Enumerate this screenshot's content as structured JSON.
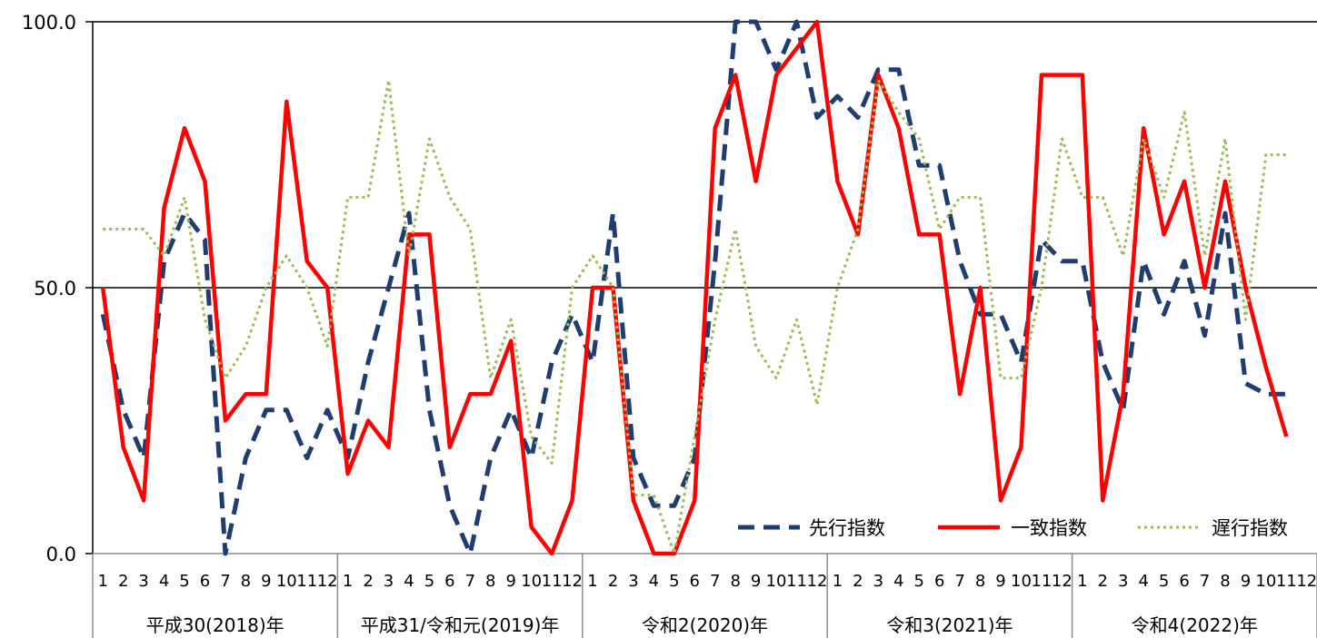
{
  "chart_data": {
    "type": "line",
    "ylim": [
      0,
      100
    ],
    "y_ticks": [
      "0.0",
      "50.0",
      "100.0"
    ],
    "grid": "horizontal at 50",
    "legend_position": "bottom-right",
    "month_labels": [
      "1",
      "2",
      "3",
      "4",
      "5",
      "6",
      "7",
      "8",
      "9",
      "10",
      "11",
      "12"
    ],
    "year_groups": [
      "平成30(2018)年",
      "平成31/令和元(2019)年",
      "令和2(2020)年",
      "令和3(2021)年",
      "令和4(2022)年"
    ],
    "series": [
      {
        "name": "先行指数",
        "color": "#1f3d6e",
        "style": "dashed",
        "values": [
          45,
          27,
          18,
          55,
          64,
          59,
          0,
          18,
          27,
          27,
          18,
          27,
          18,
          36,
          50,
          64,
          27,
          9,
          0,
          18,
          27,
          18,
          36,
          45,
          36,
          64,
          18,
          9,
          9,
          18,
          55,
          100,
          100,
          91,
          100,
          82,
          86,
          82,
          91,
          91,
          73,
          73,
          55,
          45,
          45,
          36,
          59,
          55,
          55,
          36,
          27,
          55,
          45,
          55,
          41,
          64,
          32,
          30,
          30,
          null
        ]
      },
      {
        "name": "一致指数",
        "color": "#ff0000",
        "style": "solid",
        "values": [
          50,
          20,
          10,
          65,
          80,
          70,
          25,
          30,
          30,
          85,
          55,
          50,
          15,
          25,
          20,
          60,
          60,
          20,
          30,
          30,
          40,
          5,
          0,
          10,
          50,
          50,
          10,
          0,
          0,
          10,
          80,
          90,
          70,
          90,
          95,
          100,
          70,
          60,
          90,
          80,
          60,
          60,
          30,
          50,
          10,
          20,
          90,
          90,
          90,
          10,
          30,
          80,
          60,
          70,
          50,
          70,
          50,
          35,
          22,
          null
        ]
      },
      {
        "name": "遅行指数",
        "color": "#9bbb59",
        "style": "dotted",
        "values": [
          61,
          61,
          61,
          56,
          67,
          44,
          33,
          39,
          50,
          56,
          50,
          39,
          67,
          67,
          89,
          56,
          78,
          67,
          61,
          33,
          44,
          22,
          17,
          50,
          56,
          50,
          11,
          11,
          0,
          22,
          44,
          61,
          39,
          33,
          44,
          28,
          50,
          61,
          89,
          83,
          78,
          61,
          67,
          67,
          33,
          33,
          50,
          78,
          67,
          67,
          56,
          78,
          67,
          83,
          56,
          78,
          44,
          75,
          75,
          null
        ]
      }
    ]
  }
}
